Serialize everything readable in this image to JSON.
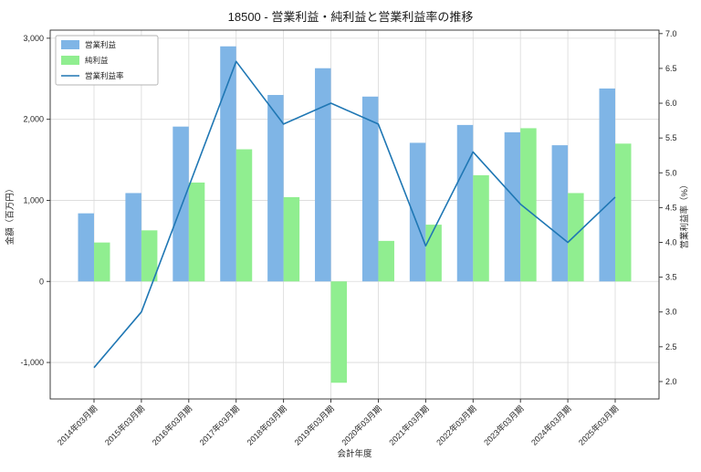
{
  "title": "18500 - 営業利益・純利益と営業利益率の推移",
  "chart_data": {
    "type": "bar",
    "subtype": "grouped-bars-with-line-overlay",
    "title": "18500 - 営業利益・純利益と営業利益率の推移",
    "xlabel": "会計年度",
    "ylabel_left": "金額（百万円）",
    "ylabel_right": "営業利益率（%）",
    "categories": [
      "2014年03月期",
      "2015年03月期",
      "2016年03月期",
      "2017年03月期",
      "2018年03月期",
      "2019年03月期",
      "2020年03月期",
      "2021年03月期",
      "2022年03月期",
      "2023年03月期",
      "2024年03月期",
      "2025年03月期"
    ],
    "series": [
      {
        "name": "営業利益",
        "type": "bar",
        "axis": "left",
        "color": "#7fb5e6",
        "values": [
          840,
          1090,
          1910,
          2900,
          2300,
          2630,
          2280,
          1710,
          1930,
          1840,
          1680,
          2380
        ]
      },
      {
        "name": "純利益",
        "type": "bar",
        "axis": "left",
        "color": "#90ee90",
        "values": [
          480,
          630,
          1220,
          1630,
          1040,
          -1250,
          500,
          700,
          1310,
          1890,
          1090,
          1700
        ]
      },
      {
        "name": "営業利益率",
        "type": "line",
        "axis": "right",
        "color": "#1f77b4",
        "values": [
          2.2,
          3.0,
          4.8,
          6.6,
          5.7,
          6.0,
          5.7,
          3.95,
          5.3,
          4.55,
          4.0,
          4.65
        ]
      }
    ],
    "ylim_left": [
      -1450,
      3100
    ],
    "yticks_left": [
      -1000,
      0,
      1000,
      2000,
      3000
    ],
    "ylim_right": [
      1.75,
      7.05
    ],
    "yticks_right": [
      2.0,
      2.5,
      3.0,
      3.5,
      4.0,
      4.5,
      5.0,
      5.5,
      6.0,
      6.5,
      7.0
    ],
    "grid": true,
    "legend_position": "upper-left",
    "colors": {
      "grid": "#d9d9d9",
      "spine": "#2b2b2b",
      "text": "#262626",
      "background": "#ffffff"
    }
  }
}
